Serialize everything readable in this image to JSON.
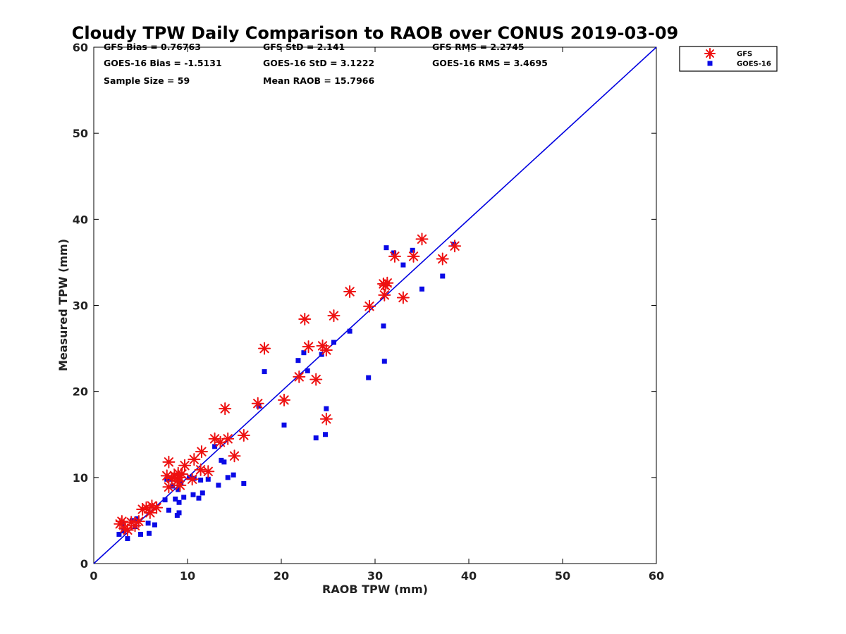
{
  "chart_data": {
    "type": "scatter",
    "title": "Cloudy TPW Daily Comparison to RAOB over CONUS 2019-03-09",
    "xlabel": "RAOB TPW (mm)",
    "ylabel": "Measured TPW (mm)",
    "xlim": [
      0,
      60
    ],
    "ylim": [
      0,
      60
    ],
    "xticks": [
      "0",
      "10",
      "20",
      "30",
      "40",
      "50",
      "60"
    ],
    "yticks": [
      "0",
      "10",
      "20",
      "30",
      "40",
      "50",
      "60"
    ],
    "grid": false,
    "legend_position": "outside-top-right",
    "reference_line": {
      "x": [
        0,
        60
      ],
      "y": [
        0,
        60
      ],
      "color": "#0000e0"
    },
    "stats": [
      "GFS Bias = 0.76763",
      "GFS StD = 2.141",
      "GFS RMS = 2.2745",
      "GOES-16 Bias = -1.5131",
      "GOES-16 StD = 3.1222",
      "GOES-16 RMS = 3.4695",
      "Sample Size = 59",
      "Mean RAOB = 15.7966"
    ],
    "series": [
      {
        "name": "GFS",
        "marker": "asterisk",
        "color": "#ee1111",
        "x": [
          2.8,
          3.0,
          3.3,
          3.6,
          4.0,
          4.4,
          4.8,
          5.2,
          5.6,
          6.0,
          6.2,
          6.7,
          7.8,
          8.0,
          8.0,
          8.3,
          8.6,
          8.9,
          9.0,
          9.1,
          9.2,
          9.4,
          9.7,
          10.5,
          10.7,
          11.4,
          11.5,
          12.2,
          12.9,
          13.5,
          14.0,
          14.3,
          15.0,
          16.0,
          17.5,
          18.2,
          20.3,
          21.9,
          22.5,
          22.9,
          23.7,
          24.4,
          24.8,
          24.8,
          25.6,
          27.3,
          29.4,
          30.9,
          31.0,
          31.1,
          31.3,
          32.1,
          33.0,
          34.1,
          35.0,
          37.2,
          38.5
        ],
        "y": [
          4.6,
          4.9,
          4.1,
          3.9,
          4.8,
          4.4,
          4.9,
          6.3,
          6.5,
          5.9,
          6.7,
          6.5,
          10.2,
          8.9,
          11.8,
          9.9,
          10.2,
          9.6,
          10.5,
          10.0,
          9.1,
          10.4,
          11.4,
          9.8,
          12.1,
          10.9,
          13.0,
          10.7,
          14.5,
          14.1,
          18.0,
          14.5,
          12.5,
          14.9,
          18.6,
          25.0,
          19.0,
          21.7,
          28.4,
          25.2,
          21.4,
          25.3,
          24.8,
          16.8,
          28.8,
          31.6,
          29.9,
          32.5,
          31.2,
          32.3,
          32.6,
          35.7,
          30.9,
          35.7,
          37.7,
          35.4,
          36.9
        ]
      },
      {
        "name": "GOES-16",
        "marker": "square",
        "color": "#0a0ae6",
        "x": [
          2.7,
          3.0,
          3.2,
          3.6,
          4.1,
          4.4,
          4.6,
          5.0,
          5.8,
          5.9,
          6.5,
          7.6,
          7.8,
          8.0,
          8.2,
          8.4,
          8.7,
          8.9,
          9.0,
          9.1,
          9.1,
          9.3,
          9.6,
          10.2,
          10.6,
          10.7,
          11.2,
          11.4,
          11.6,
          12.2,
          12.9,
          13.3,
          13.6,
          13.9,
          14.3,
          14.9,
          16.0,
          17.6,
          18.2,
          20.3,
          21.8,
          22.4,
          22.8,
          23.7,
          24.3,
          24.7,
          24.8,
          25.6,
          27.3,
          29.3,
          30.9,
          31.0,
          31.2,
          32.0,
          33.0,
          34.0,
          35.0,
          37.2,
          38.4
        ],
        "y": [
          3.4,
          4.7,
          3.8,
          2.9,
          5.0,
          4.3,
          5.2,
          3.4,
          4.7,
          3.5,
          4.5,
          7.4,
          9.8,
          6.2,
          9.8,
          9.0,
          7.5,
          5.6,
          8.6,
          5.9,
          7.1,
          9.4,
          7.7,
          10.0,
          8.0,
          9.9,
          7.6,
          9.7,
          8.2,
          9.8,
          13.6,
          9.1,
          12.0,
          11.8,
          10.0,
          10.3,
          9.3,
          18.3,
          22.3,
          16.1,
          23.6,
          24.5,
          22.4,
          14.6,
          24.3,
          15.0,
          18.0,
          25.7,
          27.0,
          21.6,
          27.6,
          23.5,
          36.7,
          36.1,
          34.7,
          36.4,
          31.9,
          33.4,
          37.1
        ]
      }
    ]
  }
}
